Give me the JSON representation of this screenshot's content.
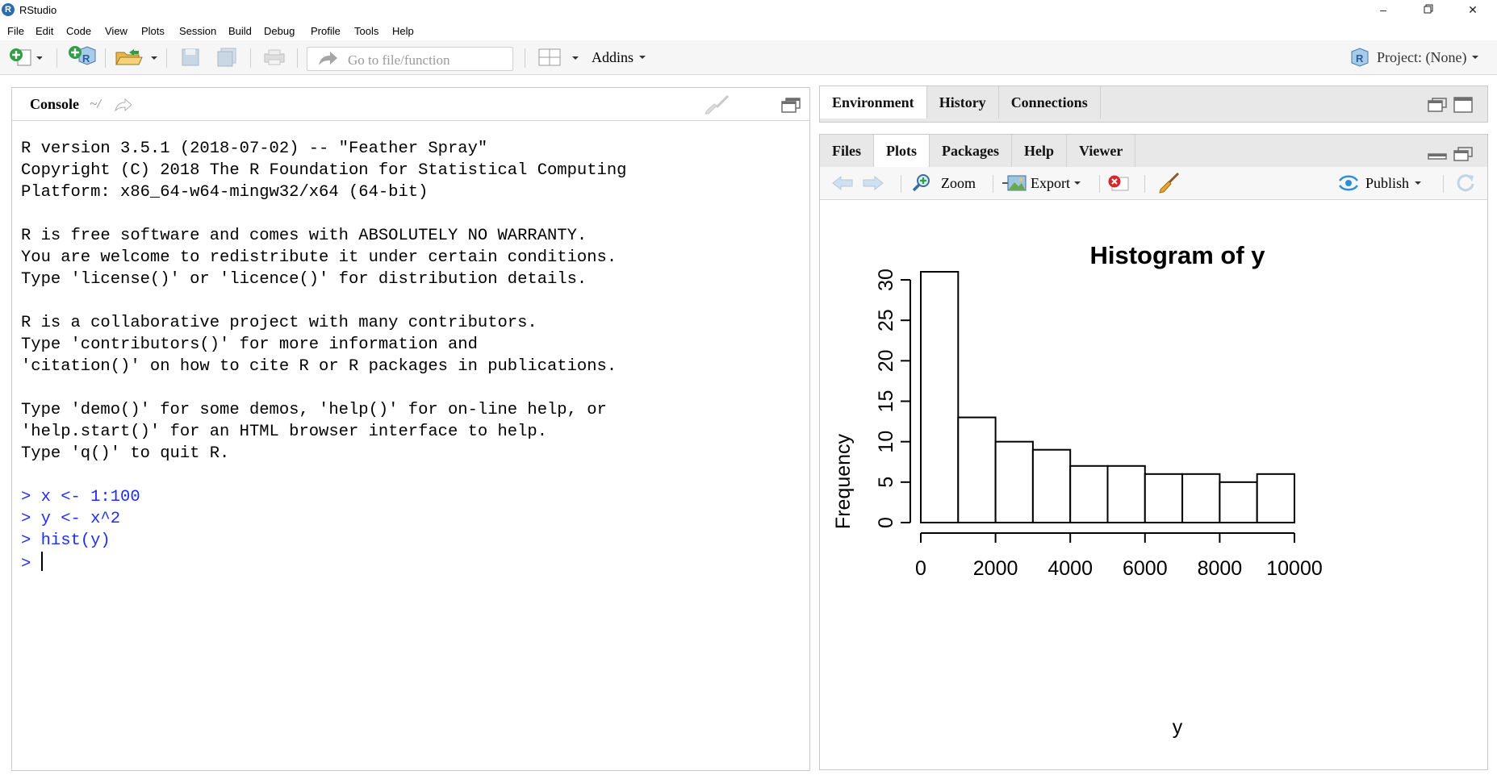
{
  "window": {
    "title": "RStudio",
    "logo": "R"
  },
  "menu": [
    "File",
    "Edit",
    "Code",
    "View",
    "Plots",
    "Session",
    "Build",
    "Debug",
    "Profile",
    "Tools",
    "Help"
  ],
  "toolbar": {
    "goto_placeholder": "Go to file/function",
    "addins_label": "Addins",
    "project_label": "Project: (None)",
    "project_icon_letter": "R"
  },
  "console": {
    "tab_label": "Console",
    "path": "~/",
    "lines": [
      {
        "text": "R version 3.5.1 (2018-07-02) -- \"Feather Spray\"",
        "type": "out"
      },
      {
        "text": "Copyright (C) 2018 The R Foundation for Statistical Computing",
        "type": "out"
      },
      {
        "text": "Platform: x86_64-w64-mingw32/x64 (64-bit)",
        "type": "out"
      },
      {
        "text": "",
        "type": "out"
      },
      {
        "text": "R is free software and comes with ABSOLUTELY NO WARRANTY.",
        "type": "out"
      },
      {
        "text": "You are welcome to redistribute it under certain conditions.",
        "type": "out"
      },
      {
        "text": "Type 'license()' or 'licence()' for distribution details.",
        "type": "out"
      },
      {
        "text": "",
        "type": "out"
      },
      {
        "text": "R is a collaborative project with many contributors.",
        "type": "out"
      },
      {
        "text": "Type 'contributors()' for more information and",
        "type": "out"
      },
      {
        "text": "'citation()' on how to cite R or R packages in publications.",
        "type": "out"
      },
      {
        "text": "",
        "type": "out"
      },
      {
        "text": "Type 'demo()' for some demos, 'help()' for on-line help, or",
        "type": "out"
      },
      {
        "text": "'help.start()' for an HTML browser interface to help.",
        "type": "out"
      },
      {
        "text": "Type 'q()' to quit R.",
        "type": "out"
      },
      {
        "text": "",
        "type": "out"
      },
      {
        "text": "> x <- 1:100",
        "type": "cmd"
      },
      {
        "text": "> y <- x^2",
        "type": "cmd"
      },
      {
        "text": "> hist(y)",
        "type": "cmd"
      },
      {
        "text": "> ",
        "type": "prompt"
      }
    ]
  },
  "env_pane": {
    "tabs": [
      "Environment",
      "History",
      "Connections"
    ]
  },
  "plots_pane": {
    "tabs": [
      "Files",
      "Plots",
      "Packages",
      "Help",
      "Viewer"
    ],
    "active_tab": "Plots",
    "toolbar": {
      "zoom": "Zoom",
      "export": "Export",
      "publish": "Publish"
    }
  },
  "chart_data": {
    "type": "bar",
    "title": "Histogram of y",
    "xlabel": "y",
    "ylabel": "Frequency",
    "bins": [
      {
        "from": 0,
        "to": 1000,
        "count": 31
      },
      {
        "from": 1000,
        "to": 2000,
        "count": 13
      },
      {
        "from": 2000,
        "to": 3000,
        "count": 10
      },
      {
        "from": 3000,
        "to": 4000,
        "count": 9
      },
      {
        "from": 4000,
        "to": 5000,
        "count": 7
      },
      {
        "from": 5000,
        "to": 6000,
        "count": 7
      },
      {
        "from": 6000,
        "to": 7000,
        "count": 6
      },
      {
        "from": 7000,
        "to": 8000,
        "count": 6
      },
      {
        "from": 8000,
        "to": 9000,
        "count": 5
      },
      {
        "from": 9000,
        "to": 10000,
        "count": 6
      }
    ],
    "xlim": [
      0,
      10000
    ],
    "ylim": [
      0,
      31
    ],
    "x_ticks": [
      "0",
      "2000",
      "4000",
      "6000",
      "8000",
      "10000"
    ],
    "y_ticks": [
      "0",
      "5",
      "10",
      "15",
      "20",
      "25",
      "30"
    ],
    "grid": false
  }
}
